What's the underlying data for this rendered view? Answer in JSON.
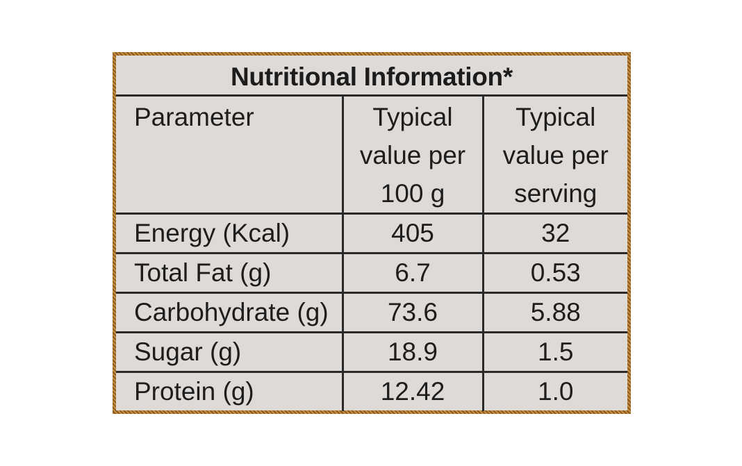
{
  "title": "Nutritional Information*",
  "headers": {
    "parameter": "Parameter",
    "per100g": [
      "Typical",
      "value per",
      "100 g"
    ],
    "perServing": [
      "Typical",
      "value per",
      "serving"
    ]
  },
  "rows": [
    {
      "parameter": "Energy (Kcal)",
      "per100g": "405",
      "perServing": "32"
    },
    {
      "parameter": "Total Fat (g)",
      "per100g": "6.7",
      "perServing": "0.53"
    },
    {
      "parameter": "Carbohydrate (g)",
      "per100g": "73.6",
      "perServing": "5.88"
    },
    {
      "parameter": "Sugar (g)",
      "per100g": "18.9",
      "perServing": "1.5"
    },
    {
      "parameter": "Protein (g)",
      "per100g": "12.42",
      "perServing": "1.0"
    }
  ],
  "colors": {
    "panel": "#dedad7",
    "border_pattern": "#c9913f",
    "text": "#1d1d1d"
  }
}
